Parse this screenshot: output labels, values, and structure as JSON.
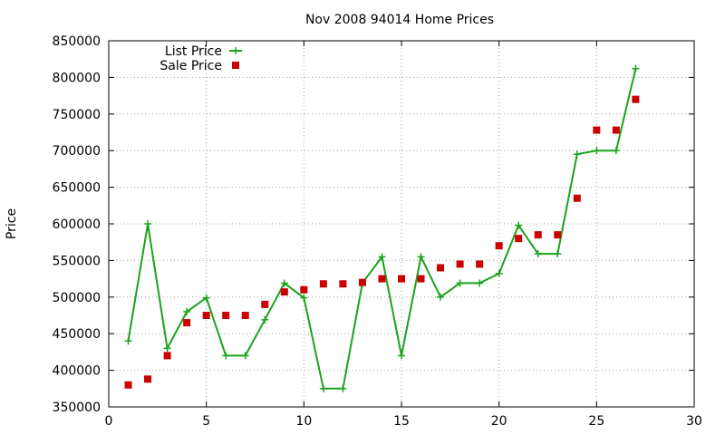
{
  "chart_data": {
    "type": "line",
    "title": "Nov 2008 94014 Home Prices",
    "xlabel": "",
    "ylabel": "Price",
    "xlim": [
      0,
      30
    ],
    "ylim": [
      350000,
      850000
    ],
    "x_ticks": [
      0,
      5,
      10,
      15,
      20,
      25,
      30
    ],
    "y_ticks": [
      350000,
      400000,
      450000,
      500000,
      550000,
      600000,
      650000,
      700000,
      750000,
      800000,
      850000
    ],
    "grid": true,
    "grid_style": "dotted",
    "legend_position": "top-left",
    "series": [
      {
        "name": "List Price",
        "style": "lines-and-crosses",
        "color": "#1aa31a",
        "x": [
          1,
          2,
          3,
          4,
          5,
          6,
          7,
          8,
          9,
          10,
          11,
          12,
          13,
          14,
          15,
          16,
          17,
          18,
          19,
          20,
          21,
          22,
          23,
          24,
          25,
          26,
          27
        ],
        "values": [
          440000,
          600000,
          430000,
          480000,
          499000,
          420000,
          420000,
          469000,
          519000,
          499000,
          375000,
          375000,
          519000,
          555000,
          420000,
          555000,
          500000,
          519000,
          519000,
          532000,
          598000,
          559000,
          559000,
          695000,
          700000,
          700000,
          812000
        ]
      },
      {
        "name": "Sale Price",
        "style": "square-points",
        "color": "#cc0000",
        "x": [
          1,
          2,
          3,
          4,
          5,
          6,
          7,
          8,
          9,
          10,
          11,
          12,
          13,
          14,
          15,
          16,
          17,
          18,
          19,
          20,
          21,
          22,
          23,
          24,
          25,
          26,
          27
        ],
        "values": [
          380000,
          388000,
          420000,
          465000,
          475000,
          475000,
          475000,
          490000,
          507000,
          510000,
          518000,
          518000,
          520000,
          525000,
          525000,
          525000,
          540000,
          545000,
          545000,
          570000,
          580000,
          585000,
          585000,
          635000,
          728000,
          728000,
          770000
        ]
      }
    ]
  }
}
